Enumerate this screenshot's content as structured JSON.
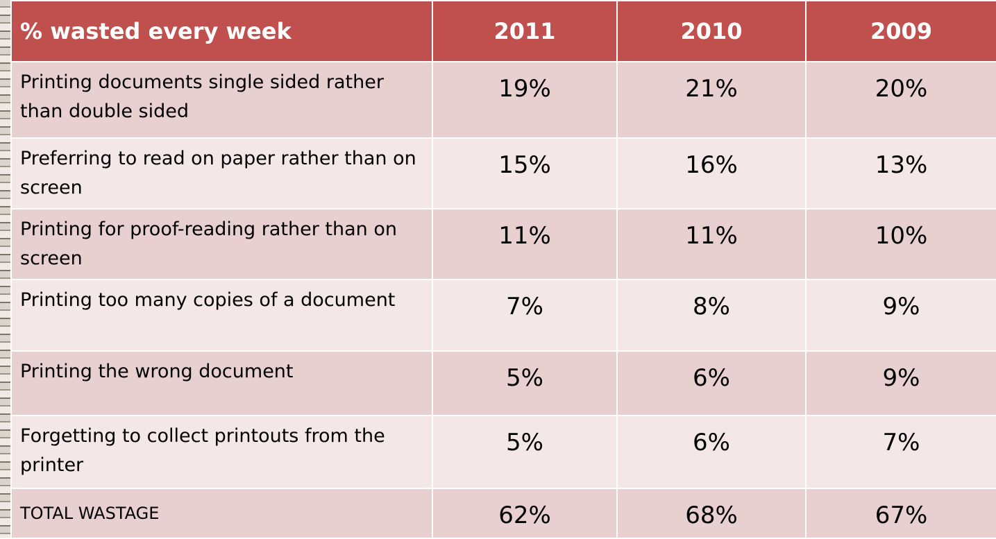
{
  "table": {
    "header": [
      "% wasted every week",
      "2011",
      "2010",
      "2009"
    ],
    "rows": [
      [
        "Printing documents single sided rather than double sided",
        "19%",
        "21%",
        "20%"
      ],
      [
        "Preferring to read on paper rather than on screen",
        "15%",
        "16%",
        "13%"
      ],
      [
        "Printing for proof-reading rather than on screen",
        "11%",
        "11%",
        "10%"
      ],
      [
        "Printing too many copies of a document",
        "7%",
        "8%",
        "9%"
      ],
      [
        "Printing the wrong document",
        "5%",
        "6%",
        "9%"
      ],
      [
        "Forgetting to collect printouts from the printer",
        "5%",
        "6%",
        "7%"
      ],
      [
        "TOTAL WASTAGE",
        "62%",
        "68%",
        "67%"
      ]
    ]
  }
}
